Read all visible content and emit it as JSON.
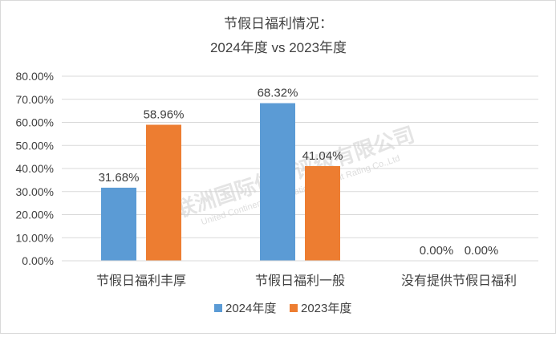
{
  "chart_data": {
    "type": "bar",
    "title_lines": [
      "节假日福利情况：",
      "2024年度 vs 2023年度"
    ],
    "categories": [
      "节假日福利丰厚",
      "节假日福利一般",
      "没有提供节假日福利"
    ],
    "series": [
      {
        "name": "2024年度",
        "values": [
          31.68,
          68.32,
          0.0
        ],
        "labels": [
          "31.68%",
          "68.32%",
          "0.00%"
        ],
        "color": "#5b9bd5"
      },
      {
        "name": "2023年度",
        "values": [
          58.96,
          41.04,
          0.0
        ],
        "labels": [
          "58.96%",
          "41.04%",
          "0.00%"
        ],
        "color": "#ed7d31"
      }
    ],
    "y_ticks": [
      {
        "value": 0,
        "label": "0.00%"
      },
      {
        "value": 10,
        "label": "10.00%"
      },
      {
        "value": 20,
        "label": "20.00%"
      },
      {
        "value": 30,
        "label": "30.00%"
      },
      {
        "value": 40,
        "label": "40.00%"
      },
      {
        "value": 50,
        "label": "50.00%"
      },
      {
        "value": 60,
        "label": "60.00%"
      },
      {
        "value": 70,
        "label": "70.00%"
      },
      {
        "value": 80,
        "label": "80.00%"
      }
    ],
    "ylim": [
      0,
      80
    ],
    "grid": true,
    "legend_position": "bottom",
    "gridline_color": "#d9d9d9"
  },
  "watermark": {
    "text": "联洲国际信用评级有限公司",
    "subtext": "United Continental International Credit Rating Co.,Ltd"
  }
}
